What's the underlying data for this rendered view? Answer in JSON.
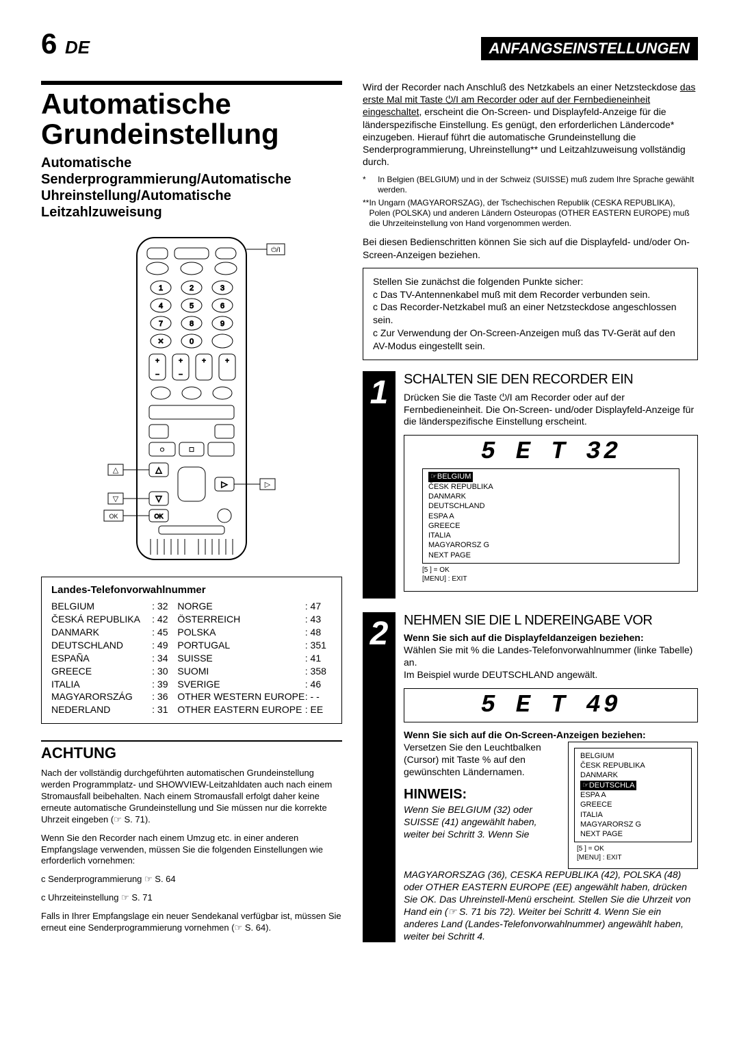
{
  "header": {
    "page_number": "6",
    "page_suffix": "DE",
    "section_title": "ANFANGSEINSTELLUNGEN"
  },
  "main": {
    "title": "Automatische Grundeinstellung",
    "subtitle": "Automatische Senderprogrammierung/Automatische Uhreinstellung/Automatische Leitzahlzuweisung"
  },
  "remote": {
    "ok_label": "OK",
    "arrow_up": "△",
    "arrow_down": "▽",
    "arrow_right": "▷"
  },
  "country_table": {
    "title": "Landes-Telefonvorwahlnummer",
    "rows": [
      {
        "c1": "BELGIUM",
        "n1": ": 32",
        "c2": "NORGE",
        "n2": ": 47"
      },
      {
        "c1": "ČESKÁ REPUBLIKA",
        "n1": ": 42",
        "c2": "ÖSTERREICH",
        "n2": ": 43"
      },
      {
        "c1": "DANMARK",
        "n1": ": 45",
        "c2": "POLSKA",
        "n2": ": 48"
      },
      {
        "c1": "DEUTSCHLAND",
        "n1": ": 49",
        "c2": "PORTUGAL",
        "n2": ": 351"
      },
      {
        "c1": "ESPAÑA",
        "n1": ": 34",
        "c2": "SUISSE",
        "n2": ": 41"
      },
      {
        "c1": "GREECE",
        "n1": ": 30",
        "c2": "SUOMI",
        "n2": ": 358"
      },
      {
        "c1": "ITALIA",
        "n1": ": 39",
        "c2": "SVERIGE",
        "n2": ": 46"
      },
      {
        "c1": "MAGYARORSZÁG",
        "n1": ": 36",
        "c2": "OTHER WESTERN EUROPE",
        "n2": ": - -"
      },
      {
        "c1": "NEDERLAND",
        "n1": ": 31",
        "c2": "OTHER EASTERN EUROPE",
        "n2": ": EE"
      }
    ]
  },
  "achtung": {
    "title": "ACHTUNG",
    "p1": "Nach der vollständig durchgeführten automatischen Grundeinstellung werden Programmplatz- und SHOWVIEW-Leitzahldaten auch nach einem Stromausfall beibehalten. Nach einem Stromausfall erfolgt daher keine erneute automatische Grundeinstellung und Sie müssen nur die korrekte Uhrzeit eingeben (☞ S. 71).",
    "p2": "Wenn Sie den Recorder nach einem Umzug etc. in einer anderen Empfangslage verwenden, müssen Sie die folgenden Einstellungen wie erforderlich vornehmen:",
    "li1": "c Senderprogrammierung ☞ S. 64",
    "li2": "c Uhrzeiteinstellung ☞ S. 71",
    "p3": "Falls in Ihrer Empfangslage ein neuer Sendekanal verfügbar ist, müssen Sie erneut eine Senderprogrammierung vornehmen (☞ S. 64)."
  },
  "right_intro": {
    "text_before": "Wird der Recorder nach Anschluß des Netzkabels an einer Netzsteckdose ",
    "underlined": "das erste Mal mit Taste ⏻/I am Recorder oder auf der Fernbedieneinheit eingeschaltet",
    "text_after": ", erscheint die On-Screen- und Displayfeld-Anzeige für die länderspezifische Einstellung. Es genügt, den erforderlichen Ländercode* einzugeben. Hierauf führt die automatische Grundeinstellung die Senderprogrammierung, Uhreinstellung** und Leitzahlzuweisung vollständig durch."
  },
  "footnotes": {
    "f1": "In Belgien (BELGIUM) und in der Schweiz (SUISSE) muß zudem Ihre Sprache gewählt werden.",
    "f2": "In Ungarn (MAGYARORSZAG), der Tschechischen Republik (CESKA REPUBLIKA), Polen (POLSKA) und anderen Ländern Osteuropas (OTHER EASTERN EUROPE) muß die Uhrzeiteinstellung von Hand vorgenommen werden."
  },
  "pre_step_text": "Bei diesen Bedienschritten können Sie sich auf die Displayfeld- und/oder On-Screen-Anzeigen beziehen.",
  "checklist": {
    "intro": "Stellen Sie zunächst die folgenden Punkte sicher:",
    "items": [
      "c Das TV-Antennenkabel muß mit dem Recorder verbunden sein.",
      "c Das Recorder-Netzkabel muß an einer Netzsteckdose angeschlossen sein.",
      "c Zur Verwendung der On-Screen-Anzeigen muß das TV-Gerät auf den AV-Modus eingestellt sein."
    ]
  },
  "step1": {
    "num": "1",
    "title": "SCHALTEN SIE DEN RECORDER EIN",
    "body": "Drücken Sie die Taste ⏻/I am Recorder oder auf der Fernbedieneinheit. Die On-Screen- und/oder Displayfeld-Anzeige für die länderspezifische Einstellung erscheint.",
    "display": "5 E T  32",
    "menu_items": [
      "BELGIUM",
      "ČESK  REPUBLIKA",
      "DANMARK",
      "DEUTSCHLAND",
      "ESPA A",
      "GREECE",
      "ITALIA",
      "MAGYARORSZ G",
      "NEXT PAGE"
    ],
    "menu_selected": 0,
    "menu_foot1": "[5   ] = OK",
    "menu_foot2": "[MENU] : EXIT"
  },
  "step2": {
    "num": "2",
    "title": "NEHMEN SIE DIE L NDEREINGABE VOR",
    "sub_bold1": "Wenn Sie sich auf die Displayfeldanzeigen beziehen:",
    "body1": "Wählen Sie mit %   die Landes-Telefonvorwahlnummer (linke Tabelle) an.",
    "body2": "Im Beispiel wurde DEUTSCHLAND angewält.",
    "display": "5 E T  49",
    "sub_bold2": "Wenn Sie sich auf die On-Screen-Anzeigen beziehen:",
    "body3": "Versetzen Sie den Leuchtbalken (Cursor) mit Taste %   auf den gewünschten Ländernamen.",
    "hinweis_title": "HINWEIS:",
    "hinweis_italic": "Wenn Sie BELGIUM (32) oder SUISSE (41) angewählt haben, weiter bei Schritt 3. Wenn Sie",
    "menu_items": [
      "BELGIUM",
      "ČESK  REPUBLIKA",
      "DANMARK",
      "DEUTSCHLA",
      "ESPA A",
      "GREECE",
      "ITALIA",
      "MAGYARORSZ G",
      "NEXT PAGE"
    ],
    "menu_selected": 3,
    "menu_foot1": "[5   ] = OK",
    "menu_foot2": "[MENU] : EXIT",
    "final_italic": "MAGYARORSZAG (36), CESKA REPUBLIKA (42), POLSKA (48) oder OTHER EASTERN EUROPE (EE) angewählt haben, drücken Sie OK. Das Uhreinstell-Menü erscheint. Stellen Sie die Uhrzeit von Hand ein (☞ S. 71 bis 72). Weiter bei Schritt 4. Wenn Sie ein anderes Land (Landes-Telefonvorwahlnummer) angewählt haben, weiter bei Schritt 4."
  }
}
